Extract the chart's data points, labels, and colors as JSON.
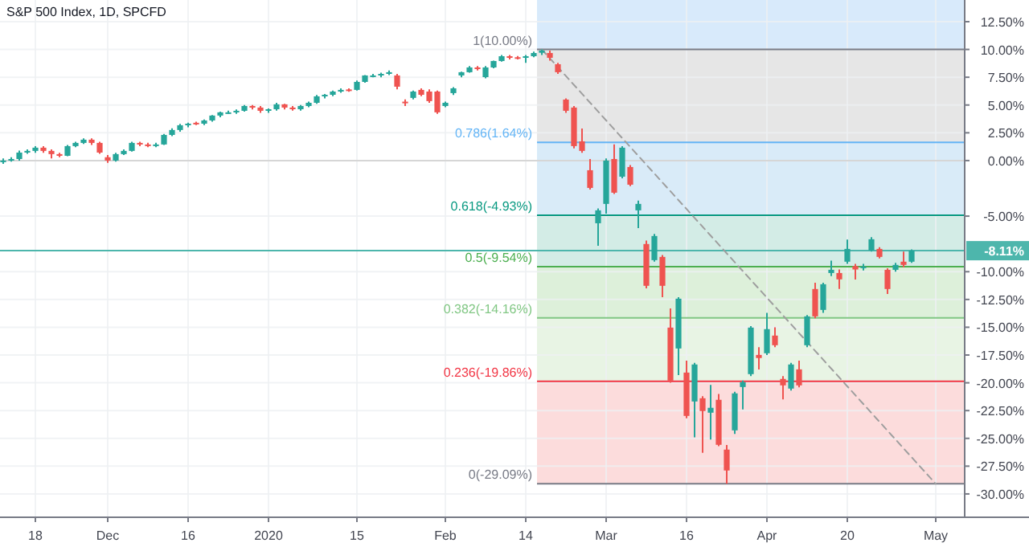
{
  "chart_data": {
    "type": "candlestick",
    "title": "S&P 500 Index, 1D, SPCFD",
    "categories": [
      null,
      null,
      null,
      null,
      "18",
      null,
      null,
      null,
      null,
      null,
      null,
      null,
      null,
      "Dec",
      null,
      null,
      null,
      null,
      null,
      null,
      null,
      null,
      null,
      "16",
      null,
      null,
      null,
      null,
      null,
      null,
      null,
      null,
      null,
      "2020",
      null,
      null,
      null,
      null,
      null,
      null,
      null,
      null,
      null,
      null,
      "15",
      null,
      null,
      null,
      null,
      null,
      null,
      null,
      null,
      null,
      null,
      "Feb",
      null,
      null,
      null,
      null,
      null,
      null,
      null,
      null,
      null,
      "14",
      null,
      null,
      null,
      null,
      null,
      null,
      null,
      null,
      null,
      "Mar",
      null,
      null,
      null,
      null,
      null,
      null,
      null,
      null,
      null,
      "16",
      null,
      null,
      null,
      null,
      null,
      null,
      null,
      null,
      null,
      "Apr",
      null,
      null,
      null,
      null,
      null,
      null,
      null,
      null,
      null,
      "20",
      null,
      null,
      null,
      null,
      null,
      null,
      null,
      null,
      null,
      null,
      "May",
      null,
      null,
      null
    ],
    "ohlc": [
      [
        -0.1,
        0.2,
        -0.3,
        0.0
      ],
      [
        0.0,
        0.3,
        -0.1,
        0.14
      ],
      [
        0.14,
        0.9,
        0.0,
        0.72
      ],
      [
        0.72,
        1.0,
        0.6,
        0.87
      ],
      [
        0.87,
        1.3,
        0.7,
        1.16
      ],
      [
        1.16,
        1.3,
        0.7,
        0.87
      ],
      [
        0.87,
        1.0,
        0.2,
        0.58
      ],
      [
        0.58,
        0.7,
        0.3,
        0.43
      ],
      [
        0.43,
        1.4,
        0.4,
        1.3
      ],
      [
        1.3,
        1.7,
        1.2,
        1.59
      ],
      [
        1.59,
        2.0,
        1.5,
        1.88
      ],
      [
        1.88,
        2.0,
        1.4,
        1.59
      ],
      [
        1.59,
        1.7,
        0.6,
        0.72
      ],
      [
        0.3,
        0.5,
        -0.2,
        0.0
      ],
      [
        0.0,
        0.7,
        -0.1,
        0.58
      ],
      [
        0.58,
        1.0,
        0.5,
        0.87
      ],
      [
        0.87,
        1.7,
        0.8,
        1.59
      ],
      [
        1.59,
        1.7,
        1.3,
        1.45
      ],
      [
        1.45,
        1.6,
        1.2,
        1.3
      ],
      [
        1.3,
        1.6,
        1.2,
        1.45
      ],
      [
        1.45,
        2.4,
        1.4,
        2.31
      ],
      [
        2.31,
        2.9,
        2.2,
        2.75
      ],
      [
        2.75,
        3.3,
        2.6,
        3.18
      ],
      [
        3.18,
        3.4,
        3.0,
        3.32
      ],
      [
        3.4,
        3.5,
        3.2,
        3.32
      ],
      [
        3.32,
        3.7,
        3.2,
        3.61
      ],
      [
        3.61,
        4.1,
        3.5,
        4.05
      ],
      [
        4.05,
        4.4,
        3.9,
        4.34
      ],
      [
        4.3,
        4.5,
        4.2,
        4.34
      ],
      [
        4.34,
        4.6,
        4.2,
        4.48
      ],
      [
        4.48,
        5.0,
        4.4,
        4.91
      ],
      [
        4.91,
        5.0,
        4.6,
        4.77
      ],
      [
        4.77,
        4.9,
        4.3,
        4.48
      ],
      [
        4.48,
        4.7,
        4.3,
        4.62
      ],
      [
        4.62,
        5.2,
        4.5,
        5.06
      ],
      [
        5.06,
        5.1,
        4.6,
        4.77
      ],
      [
        4.77,
        4.9,
        4.5,
        4.62
      ],
      [
        4.62,
        5.0,
        4.5,
        4.91
      ],
      [
        4.91,
        5.3,
        4.8,
        5.2
      ],
      [
        5.2,
        5.9,
        5.1,
        5.78
      ],
      [
        5.78,
        6.0,
        5.6,
        5.92
      ],
      [
        5.92,
        6.3,
        5.8,
        6.21
      ],
      [
        6.21,
        6.5,
        6.1,
        6.36
      ],
      [
        6.4,
        6.5,
        6.2,
        6.36
      ],
      [
        6.36,
        7.2,
        6.3,
        7.08
      ],
      [
        7.08,
        7.7,
        7.0,
        7.66
      ],
      [
        7.6,
        7.8,
        7.5,
        7.66
      ],
      [
        7.66,
        7.9,
        7.5,
        7.8
      ],
      [
        7.8,
        8.1,
        7.7,
        7.95
      ],
      [
        7.66,
        7.8,
        6.4,
        6.65
      ],
      [
        5.3,
        5.5,
        4.9,
        5.2
      ],
      [
        5.64,
        6.3,
        5.5,
        6.21
      ],
      [
        6.36,
        6.5,
        5.8,
        5.92
      ],
      [
        6.21,
        6.4,
        5.2,
        5.35
      ],
      [
        6.21,
        6.3,
        4.2,
        4.34
      ],
      [
        4.91,
        5.3,
        4.8,
        5.2
      ],
      [
        6.07,
        6.6,
        5.9,
        6.5
      ],
      [
        7.66,
        8.0,
        7.5,
        7.95
      ],
      [
        7.95,
        8.5,
        7.9,
        8.38
      ],
      [
        8.38,
        8.5,
        8.1,
        8.24
      ],
      [
        7.51,
        8.5,
        7.4,
        8.38
      ],
      [
        8.38,
        9.0,
        8.3,
        8.96
      ],
      [
        8.96,
        9.5,
        8.9,
        9.39
      ],
      [
        9.39,
        9.5,
        9.1,
        9.25
      ],
      [
        9.3,
        9.4,
        9.1,
        9.25
      ],
      [
        9.35,
        9.5,
        8.8,
        9.39
      ],
      [
        9.39,
        9.8,
        9.3,
        9.68
      ],
      [
        9.7,
        10.0,
        9.5,
        9.9
      ],
      [
        9.68,
        9.9,
        9.0,
        9.25
      ],
      [
        8.67,
        8.8,
        7.8,
        7.95
      ],
      [
        5.49,
        5.6,
        4.3,
        4.48
      ],
      [
        4.77,
        4.9,
        1.1,
        1.3
      ],
      [
        1.73,
        2.89,
        0.7,
        0.87
      ],
      [
        -0.87,
        0.14,
        -2.6,
        -2.46
      ],
      [
        -5.64,
        -4.3,
        -7.66,
        -4.48
      ],
      [
        -3.9,
        0.2,
        -4.77,
        0.0
      ],
      [
        0.14,
        1.45,
        -3.0,
        -2.89
      ],
      [
        -1.45,
        1.3,
        -1.6,
        1.16
      ],
      [
        -0.58,
        -0.4,
        -2.3,
        -2.17
      ],
      [
        -4.48,
        -3.6,
        -6.07,
        -3.9
      ],
      [
        -7.51,
        -7.2,
        -11.5,
        -11.27
      ],
      [
        -8.96,
        -6.6,
        -9.1,
        -6.79
      ],
      [
        -8.67,
        -8.5,
        -12.3,
        -11.27
      ],
      [
        -15.03,
        -13.3,
        -20.0,
        -19.8
      ],
      [
        -16.91,
        -12.3,
        -19.3,
        -12.43
      ],
      [
        -19.08,
        -18.0,
        -23.2,
        -22.98
      ],
      [
        -21.68,
        -18.2,
        -24.9,
        -18.35
      ],
      [
        -21.39,
        -21.2,
        -26.3,
        -22.54
      ],
      [
        -22.69,
        -20.2,
        -25.1,
        -22.25
      ],
      [
        -21.53,
        -21.0,
        -25.7,
        -25.58
      ],
      [
        -26.01,
        -25.6,
        -29.09,
        -27.89
      ],
      [
        -24.28,
        -20.8,
        -24.6,
        -20.95
      ],
      [
        -20.38,
        -19.8,
        -22.4,
        -19.94
      ],
      [
        -19.22,
        -14.9,
        -19.4,
        -15.03
      ],
      [
        -17.49,
        -16.8,
        -18.8,
        -17.77
      ],
      [
        -17.34,
        -13.7,
        -17.5,
        -15.17
      ],
      [
        -15.75,
        -15.0,
        -16.8,
        -16.62
      ],
      [
        -19.65,
        -19.4,
        -21.5,
        -20.23
      ],
      [
        -20.52,
        -18.2,
        -20.7,
        -18.35
      ],
      [
        -18.79,
        -18.0,
        -20.4,
        -20.23
      ],
      [
        -16.62,
        -13.9,
        -16.8,
        -14.02
      ],
      [
        -11.56,
        -11.0,
        -14.2,
        -14.02
      ],
      [
        -13.44,
        -11.0,
        -13.7,
        -11.13
      ],
      [
        -10.12,
        -9.0,
        -10.4,
        -9.83
      ],
      [
        -10.12,
        -9.8,
        -11.56,
        -10.69
      ],
      [
        -9.1,
        -7.1,
        -9.3,
        -7.95
      ],
      [
        -9.5,
        -9.3,
        -10.7,
        -9.8
      ],
      [
        -9.68,
        -9.3,
        -9.9,
        -9.54
      ],
      [
        -8.09,
        -6.9,
        -8.2,
        -7.08
      ],
      [
        -7.95,
        -7.8,
        -8.8,
        -8.67
      ],
      [
        -9.83,
        -9.7,
        -12.0,
        -11.56
      ],
      [
        -9.83,
        -9.2,
        -10.0,
        -9.39
      ],
      [
        -9.1,
        -8.2,
        -9.6,
        -9.39
      ],
      [
        -9.1,
        -8.0,
        -9.2,
        -8.11
      ],
      null,
      null,
      null,
      null,
      null,
      null
    ],
    "colors": [
      "#26a69a",
      "#26a69a",
      "#26a69a",
      "#26a69a",
      "#26a69a",
      "#ef5350",
      "#ef5350",
      "#ef5350",
      "#26a69a",
      "#26a69a",
      "#26a69a",
      "#ef5350",
      "#ef5350",
      "#ef5350",
      "#26a69a",
      "#26a69a",
      "#26a69a",
      "#ef5350",
      "#ef5350",
      "#26a69a",
      "#26a69a",
      "#26a69a",
      "#26a69a",
      "#26a69a",
      "#ef5350",
      "#26a69a",
      "#26a69a",
      "#26a69a",
      "#26a69a",
      "#26a69a",
      "#26a69a",
      "#ef5350",
      "#ef5350",
      "#26a69a",
      "#26a69a",
      "#ef5350",
      "#ef5350",
      "#26a69a",
      "#26a69a",
      "#26a69a",
      "#26a69a",
      "#26a69a",
      "#26a69a",
      "#ef5350",
      "#26a69a",
      "#26a69a",
      "#26a69a",
      "#26a69a",
      "#26a69a",
      "#ef5350",
      "#ef5350",
      "#26a69a",
      "#ef5350",
      "#ef5350",
      "#ef5350",
      "#26a69a",
      "#26a69a",
      "#26a69a",
      "#26a69a",
      "#ef5350",
      "#26a69a",
      "#26a69a",
      "#26a69a",
      "#ef5350",
      "#ef5350",
      "#26a69a",
      "#26a69a",
      "#26a69a",
      "#ef5350",
      "#ef5350",
      "#ef5350",
      "#ef5350",
      "#ef5350",
      "#ef5350",
      "#26a69a",
      "#26a69a",
      "#ef5350",
      "#26a69a",
      "#ef5350",
      "#26a69a",
      "#ef5350",
      "#26a69a",
      "#ef5350",
      "#ef5350",
      "#26a69a",
      "#ef5350",
      "#26a69a",
      "#ef5350",
      "#26a69a",
      "#ef5350",
      "#ef5350",
      "#26a69a",
      "#26a69a",
      "#26a69a",
      "#ef5350",
      "#26a69a",
      "#ef5350",
      "#ef5350",
      "#26a69a",
      "#ef5350",
      "#26a69a",
      "#ef5350",
      "#26a69a",
      "#26a69a",
      "#ef5350",
      "#26a69a",
      "#ef5350",
      "#26a69a",
      "#26a69a",
      "#ef5350",
      "#ef5350",
      "#26a69a",
      "#ef5350",
      "#26a69a",
      null,
      null,
      null,
      null,
      null,
      null
    ],
    "series": [
      {
        "type": "line",
        "color": "#9e9e9e",
        "line_style": "dashed",
        "values": [
          null,
          null,
          null,
          null,
          null,
          null,
          null,
          null,
          null,
          null,
          null,
          null,
          null,
          null,
          null,
          null,
          null,
          null,
          null,
          null,
          null,
          null,
          null,
          null,
          null,
          null,
          null,
          null,
          null,
          null,
          null,
          null,
          null,
          null,
          null,
          null,
          null,
          null,
          null,
          null,
          null,
          null,
          null,
          null,
          null,
          null,
          null,
          null,
          null,
          null,
          null,
          null,
          null,
          null,
          null,
          null,
          null,
          null,
          null,
          null,
          null,
          null,
          null,
          null,
          null,
          null,
          null,
          10.0,
          null,
          null,
          null,
          null,
          null,
          null,
          null,
          null,
          null,
          null,
          null,
          null,
          null,
          null,
          null,
          null,
          null,
          null,
          null,
          null,
          null,
          null,
          null,
          null,
          null,
          null,
          null,
          null,
          null,
          null,
          null,
          null,
          null,
          null,
          null,
          null,
          null,
          null,
          null,
          null,
          null,
          null,
          null,
          null,
          null,
          null,
          null,
          null,
          -29.09,
          null,
          null,
          null
        ]
      }
    ],
    "ylim": [
      -32.1,
      14.45
    ],
    "yticks": [
      {
        "value": 12.5,
        "label": "12.50%"
      },
      {
        "value": 10,
        "label": "10.00%"
      },
      {
        "value": 7.5,
        "label": "7.50%"
      },
      {
        "value": 5,
        "label": "5.00%"
      },
      {
        "value": 2.5,
        "label": "2.50%"
      },
      {
        "value": 0,
        "label": "0.00%"
      },
      {
        "value": -5,
        "label": "-5.00%"
      },
      {
        "value": -10,
        "label": "-10.00%"
      },
      {
        "value": -12.5,
        "label": "-12.50%"
      },
      {
        "value": -15,
        "label": "-15.00%"
      },
      {
        "value": -17.5,
        "label": "-17.50%"
      },
      {
        "value": -20,
        "label": "-20.00%"
      },
      {
        "value": -22.5,
        "label": "-22.50%"
      },
      {
        "value": -25,
        "label": "-25.00%"
      },
      {
        "value": -27.5,
        "label": "-27.50%"
      },
      {
        "value": -30,
        "label": "-30.00%"
      }
    ],
    "grid": true,
    "bands": [
      {
        "axis": "y",
        "from": 10,
        "to": 14.45,
        "color": "#d8eafb"
      },
      {
        "axis": "y",
        "from": 1.64,
        "to": 10,
        "color": "#e6e6e6"
      },
      {
        "axis": "y",
        "from": -4.93,
        "to": 1.64,
        "color": "#d9ebf8"
      },
      {
        "axis": "y",
        "from": -9.54,
        "to": -4.93,
        "color": "#d3ece6"
      },
      {
        "axis": "y",
        "from": -14.16,
        "to": -9.54,
        "color": "#ddf0da"
      },
      {
        "axis": "y",
        "from": -19.86,
        "to": -14.16,
        "color": "#e8f4e4"
      },
      {
        "axis": "y",
        "from": -29.09,
        "to": -19.86,
        "color": "#fcdcdc"
      }
    ],
    "ref_lines": [
      {
        "axis": "y",
        "value": 0,
        "label": null,
        "color": "#d6d6d6"
      },
      {
        "axis": "y",
        "value": 10,
        "label": "1(10.00%)",
        "color": "#787b86"
      },
      {
        "axis": "y",
        "value": 1.64,
        "label": "0.786(1.64%)",
        "color": "#64b5f6"
      },
      {
        "axis": "y",
        "value": -4.93,
        "label": "0.618(-4.93%)",
        "color": "#089981"
      },
      {
        "axis": "y",
        "value": -9.54,
        "label": "0.5(-9.54%)",
        "color": "#4caf50"
      },
      {
        "axis": "y",
        "value": -14.16,
        "label": "0.382(-14.16%)",
        "color": "#81c784"
      },
      {
        "axis": "y",
        "value": -19.86,
        "label": "0.236(-19.86%)",
        "color": "#f23645"
      },
      {
        "axis": "y",
        "value": -29.09,
        "label": "0(-29.09%)",
        "color": "#787b86"
      },
      {
        "axis": "y",
        "value": -8.11,
        "label": "-8.11%",
        "color": "#4db6ac"
      }
    ]
  }
}
